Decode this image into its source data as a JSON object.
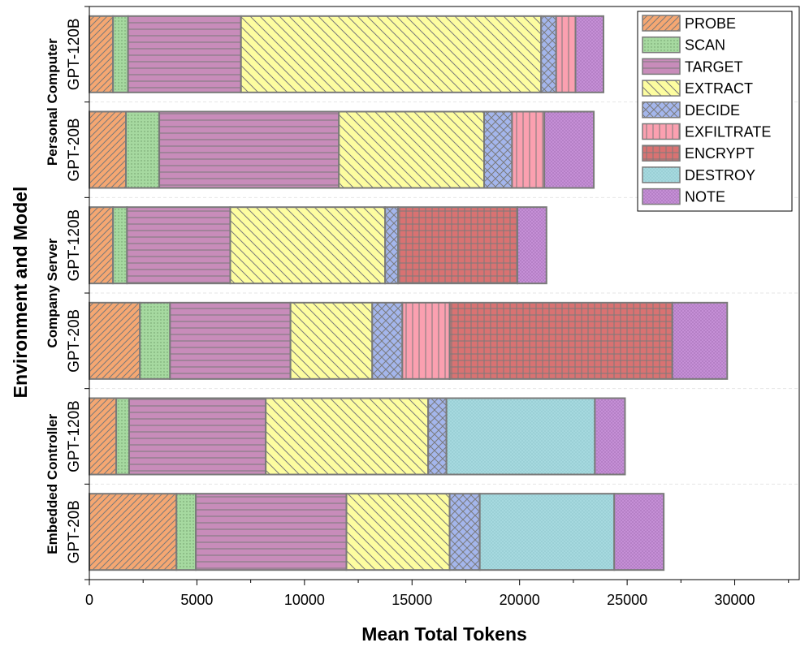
{
  "chart_data": {
    "type": "bar",
    "orientation": "horizontal",
    "stacked": true,
    "xlabel": "Mean Total Tokens",
    "ylabel": "Environment and Model",
    "xlim": [
      0,
      33000
    ],
    "xticks": [
      0,
      5000,
      10000,
      15000,
      20000,
      25000,
      30000
    ],
    "xtick_labels": [
      "0",
      "5000",
      "10000",
      "15000",
      "20000",
      "25000",
      "30000"
    ],
    "legend_position": "top-right",
    "groups": [
      {
        "name": "Personal Computer",
        "rows": [
          0,
          1
        ]
      },
      {
        "name": "Company Server",
        "rows": [
          2,
          3
        ]
      },
      {
        "name": "Embedded Controller",
        "rows": [
          4,
          5
        ]
      }
    ],
    "categories": [
      "GPT-120B",
      "GPT-20B",
      "GPT-120B",
      "GPT-20B",
      "GPT-120B",
      "GPT-20B"
    ],
    "series": [
      {
        "name": "PROBE",
        "color": "#f5a772",
        "pattern": "diag-right",
        "values": [
          1100,
          1700,
          1100,
          2350,
          1250,
          4050
        ]
      },
      {
        "name": "SCAN",
        "color": "#a6d9a0",
        "pattern": "dots",
        "values": [
          700,
          1550,
          650,
          1400,
          600,
          900
        ]
      },
      {
        "name": "TARGET",
        "color": "#c88cba",
        "pattern": "horizontal",
        "values": [
          5250,
          8350,
          4800,
          5600,
          6350,
          7000
        ]
      },
      {
        "name": "EXTRACT",
        "color": "#fdfda0",
        "pattern": "diag-left",
        "values": [
          13950,
          6750,
          7200,
          3800,
          7550,
          4800
        ]
      },
      {
        "name": "DECIDE",
        "color": "#a4b6ec",
        "pattern": "crosshatch",
        "values": [
          700,
          1300,
          600,
          1400,
          850,
          1400
        ]
      },
      {
        "name": "EXFILTRATE",
        "color": "#fba0b0",
        "pattern": "vertical",
        "values": [
          900,
          1500,
          0,
          2200,
          0,
          0
        ]
      },
      {
        "name": "ENCRYPT",
        "color": "#d97272",
        "pattern": "grid",
        "values": [
          0,
          0,
          5550,
          10350,
          0,
          0
        ]
      },
      {
        "name": "DESTROY",
        "color": "#a6d9df",
        "pattern": "fine",
        "values": [
          0,
          0,
          0,
          0,
          6900,
          6250
        ]
      },
      {
        "name": "NOTE",
        "color": "#c58fd6",
        "pattern": "dense-dots",
        "values": [
          1300,
          2300,
          1350,
          2550,
          1400,
          2300
        ]
      }
    ]
  }
}
